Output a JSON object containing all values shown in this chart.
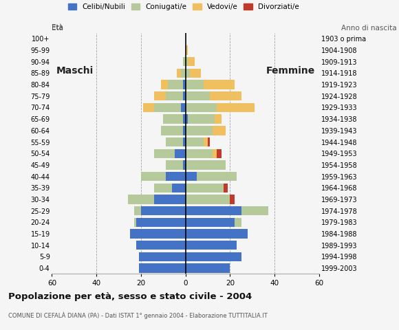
{
  "age_groups": [
    "0-4",
    "5-9",
    "10-14",
    "15-19",
    "20-24",
    "25-29",
    "30-34",
    "35-39",
    "40-44",
    "45-49",
    "50-54",
    "55-59",
    "60-64",
    "65-69",
    "70-74",
    "75-79",
    "80-84",
    "85-89",
    "90-94",
    "95-99",
    "100+"
  ],
  "birth_years": [
    "1999-2003",
    "1994-1998",
    "1989-1993",
    "1984-1988",
    "1979-1983",
    "1974-1978",
    "1969-1973",
    "1964-1968",
    "1959-1963",
    "1954-1958",
    "1949-1953",
    "1944-1948",
    "1939-1943",
    "1934-1938",
    "1929-1933",
    "1924-1928",
    "1919-1923",
    "1914-1918",
    "1909-1913",
    "1904-1908",
    "1903 o prima"
  ],
  "male": {
    "celibi": [
      21,
      21,
      22,
      25,
      22,
      20,
      14,
      6,
      9,
      1,
      5,
      1,
      1,
      1,
      2,
      1,
      1,
      0,
      0,
      0,
      0
    ],
    "coniugati": [
      0,
      0,
      0,
      0,
      1,
      3,
      12,
      8,
      11,
      8,
      9,
      8,
      10,
      9,
      12,
      8,
      7,
      2,
      1,
      0,
      0
    ],
    "vedovi": [
      0,
      0,
      0,
      0,
      0,
      0,
      0,
      0,
      0,
      0,
      0,
      0,
      0,
      0,
      5,
      5,
      3,
      2,
      0,
      0,
      0
    ],
    "divorziati": [
      0,
      0,
      0,
      0,
      0,
      0,
      0,
      0,
      0,
      0,
      0,
      0,
      0,
      0,
      0,
      0,
      0,
      0,
      0,
      0,
      0
    ]
  },
  "female": {
    "nubili": [
      20,
      25,
      23,
      28,
      22,
      25,
      0,
      0,
      5,
      0,
      0,
      0,
      0,
      1,
      0,
      0,
      0,
      0,
      0,
      0,
      0
    ],
    "coniugate": [
      0,
      0,
      0,
      0,
      3,
      12,
      20,
      17,
      18,
      18,
      12,
      8,
      12,
      12,
      14,
      11,
      8,
      2,
      1,
      0,
      0
    ],
    "vedove": [
      0,
      0,
      0,
      0,
      0,
      0,
      0,
      0,
      0,
      0,
      2,
      2,
      6,
      3,
      17,
      14,
      14,
      5,
      3,
      1,
      0
    ],
    "divorziate": [
      0,
      0,
      0,
      0,
      0,
      0,
      2,
      2,
      0,
      0,
      2,
      1,
      0,
      0,
      0,
      0,
      0,
      0,
      0,
      0,
      0
    ]
  },
  "colors": {
    "celibi": "#4472c4",
    "coniugati": "#b5c99a",
    "vedovi": "#f0c060",
    "divorziati": "#c0392b"
  },
  "title": "Popolazione per età, sesso e stato civile - 2004",
  "subtitle": "COMUNE DI CEFALÀ DIANA (PA) - Dati ISTAT 1° gennaio 2004 - Elaborazione TUTTITALIA.IT",
  "xlim": 60,
  "background_color": "#f5f5f5"
}
